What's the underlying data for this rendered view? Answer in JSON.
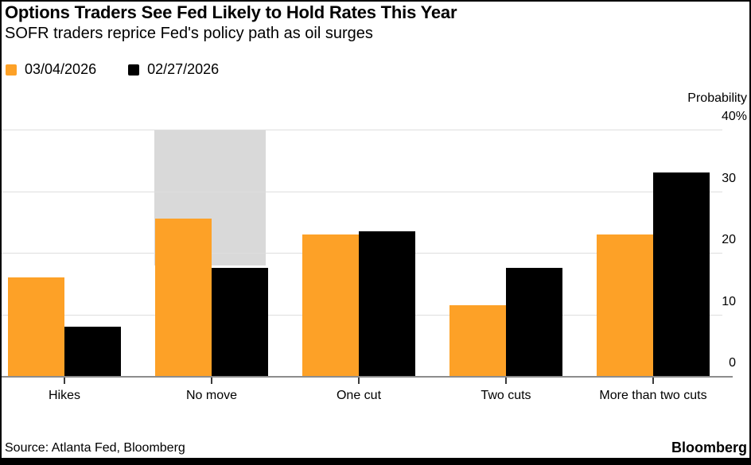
{
  "header": {
    "title": "Options Traders See Fed Likely to Hold Rates This Year",
    "subtitle": "SOFR traders reprice Fed's policy path as oil surges"
  },
  "legend": [
    {
      "label": "03/04/2026",
      "color": "#fda127"
    },
    {
      "label": "02/27/2026",
      "color": "#000000"
    }
  ],
  "chart_data": {
    "type": "bar",
    "categories": [
      "Hikes",
      "No move",
      "One cut",
      "Two cuts",
      "More than two cuts"
    ],
    "series": [
      {
        "name": "03/04/2026",
        "color": "#fda127",
        "values": [
          16,
          25.5,
          23,
          11.5,
          23
        ]
      },
      {
        "name": "02/27/2026",
        "color": "#000000",
        "values": [
          8,
          17.5,
          23.5,
          17.5,
          33
        ]
      }
    ],
    "title": "Options Traders See Fed Likely to Hold Rates This Year",
    "subtitle": "SOFR traders reprice Fed's policy path as oil surges",
    "xlabel": "",
    "ylabel": "Probability",
    "ylim": [
      0,
      40
    ],
    "grid": true,
    "legend_position": "top-left",
    "y_axis": {
      "side": "right",
      "tick_labels": [
        {
          "text": "40%",
          "value": 40
        },
        {
          "text": "30",
          "value": 30
        },
        {
          "text": "20",
          "value": 20
        },
        {
          "text": "10",
          "value": 10
        },
        {
          "text": "0",
          "value": 0
        }
      ]
    },
    "highlight_band": {
      "category": "No move",
      "value_from": 18,
      "value_to": 40,
      "color": "#d9d9d9"
    }
  },
  "footer": {
    "source": "Source: Atlanta Fed, Bloomberg",
    "brand": "Bloomberg"
  }
}
